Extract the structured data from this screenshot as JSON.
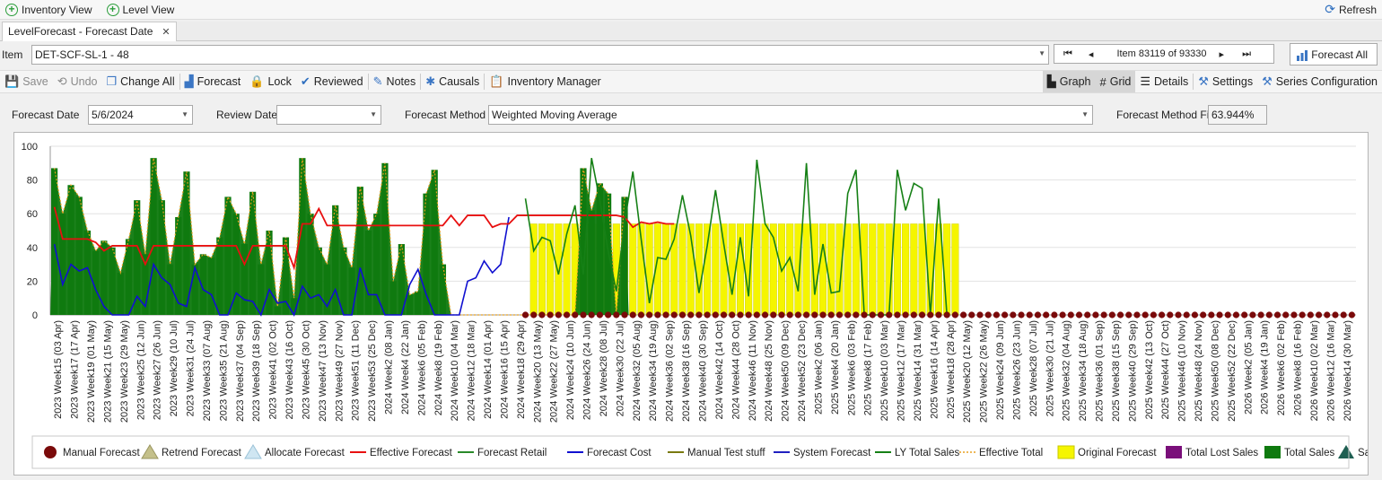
{
  "topbar": {
    "inventory_view": "Inventory View",
    "level_view": "Level View",
    "refresh": "Refresh"
  },
  "tab": {
    "label": "LevelForecast - Forecast Date",
    "close": "✕"
  },
  "item": {
    "label": "Item",
    "value": "DET-SCF-SL-1 - 48",
    "pager_text": "Item 83119 of 93330",
    "forecast_all": "Forecast All"
  },
  "toolbar": {
    "save": "Save",
    "undo": "Undo",
    "change_all": "Change All",
    "forecast": "Forecast",
    "lock": "Lock",
    "reviewed": "Reviewed",
    "notes": "Notes",
    "causals": "Causals",
    "inventory_manager": "Inventory Manager",
    "graph": "Graph",
    "grid": "Grid",
    "details": "Details",
    "settings": "Settings",
    "series_configuration": "Series Configuration"
  },
  "params": {
    "forecast_date_label": "Forecast Date",
    "forecast_date_value": "5/6/2024",
    "review_date_label": "Review Date",
    "review_date_value": "",
    "forecast_method_label": "Forecast Method",
    "forecast_method_value": "Weighted Moving Average",
    "fit_label": "Forecast Method Fit",
    "fit_value": "63.944%"
  },
  "colors": {
    "total_sales": "#0f7a0f",
    "original_forecast": "#f5f500",
    "effective_forecast": "#e81010",
    "forecast_cost": "#1010d0",
    "ly_total_sales": "#168016",
    "manual_forecast": "#7a0a0a",
    "effective_total": "#e8a020"
  },
  "chart_data": {
    "type": "combo",
    "ylim": [
      0,
      100
    ],
    "yticks": [
      0,
      20,
      40,
      60,
      80,
      100
    ],
    "grid": true,
    "legend_position": "bottom",
    "categories": [
      "2023 Week15 (03 Apr)",
      "2023 Week17 (17 Apr)",
      "2023 Week19 (01 May)",
      "2023 Week21 (15 May)",
      "2023 Week23 (29 May)",
      "2023 Week25 (12 Jun)",
      "2023 Week27 (26 Jun)",
      "2023 Week29 (10 Jul)",
      "2023 Week31 (24 Jul)",
      "2023 Week33 (07 Aug)",
      "2023 Week35 (21 Aug)",
      "2023 Week37 (04 Sep)",
      "2023 Week39 (18 Sep)",
      "2023 Week41 (02 Oct)",
      "2023 Week43 (16 Oct)",
      "2023 Week45 (30 Oct)",
      "2023 Week47 (13 Nov)",
      "2023 Week49 (27 Nov)",
      "2023 Week51 (11 Dec)",
      "2023 Week53 (25 Dec)",
      "2024 Week2 (08 Jan)",
      "2024 Week4 (22 Jan)",
      "2024 Week6 (05 Feb)",
      "2024 Week8 (19 Feb)",
      "2024 Week10 (04 Mar)",
      "2024 Week12 (18 Mar)",
      "2024 Week14 (01 Apr)",
      "2024 Week16 (15 Apr)",
      "2024 Week18 (29 Apr)",
      "2024 Week20 (13 May)",
      "2024 Week22 (27 May)",
      "2024 Week24 (10 Jun)",
      "2024 Week26 (24 Jun)",
      "2024 Week28 (08 Jul)",
      "2024 Week30 (22 Jul)",
      "2024 Week32 (05 Aug)",
      "2024 Week34 (19 Aug)",
      "2024 Week36 (02 Sep)",
      "2024 Week38 (16 Sep)",
      "2024 Week40 (30 Sep)",
      "2024 Week42 (14 Oct)",
      "2024 Week44 (28 Oct)",
      "2024 Week46 (11 Nov)",
      "2024 Week48 (25 Nov)",
      "2024 Week50 (09 Dec)",
      "2024 Week52 (23 Dec)",
      "2025 Week2 (06 Jan)",
      "2025 Week4 (20 Jan)",
      "2025 Week6 (03 Feb)",
      "2025 Week8 (17 Feb)",
      "2025 Week10 (03 Mar)",
      "2025 Week12 (17 Mar)",
      "2025 Week14 (31 Mar)",
      "2025 Week16 (14 Apr)",
      "2025 Week18 (28 Apr)",
      "2025 Week20 (12 May)",
      "2025 Week22 (26 May)",
      "2025 Week24 (09 Jun)",
      "2025 Week26 (23 Jun)",
      "2025 Week28 (07 Jul)",
      "2025 Week30 (21 Jul)",
      "2025 Week32 (04 Aug)",
      "2025 Week34 (18 Aug)",
      "2025 Week36 (01 Sep)",
      "2025 Week38 (15 Sep)",
      "2025 Week40 (29 Sep)",
      "2025 Week42 (13 Oct)",
      "2025 Week44 (27 Oct)",
      "2025 Week46 (10 Nov)",
      "2025 Week48 (24 Nov)",
      "2025 Week50 (08 Dec)",
      "2025 Week52 (22 Dec)",
      "2026 Week2 (05 Jan)",
      "2026 Week4 (19 Jan)",
      "2026 Week6 (02 Feb)",
      "2026 Week8 (16 Feb)",
      "2026 Week10 (02 Mar)",
      "2026 Week12 (16 Mar)",
      "2026 Week14 (30 Mar)"
    ],
    "total_sales": [
      87,
      60,
      77,
      70,
      50,
      38,
      44,
      40,
      25,
      45,
      68,
      36,
      93,
      68,
      30,
      58,
      85,
      30,
      36,
      34,
      46,
      70,
      60,
      42,
      73,
      30,
      50,
      5,
      46,
      10,
      93,
      60,
      40,
      30,
      65,
      40,
      28,
      76,
      50,
      60,
      90,
      20,
      42,
      12,
      14,
      72,
      86,
      30,
      0,
      0,
      0,
      0,
      0,
      0,
      0,
      0,
      0,
      0,
      0,
      0,
      0,
      0,
      0,
      0,
      87,
      62,
      78,
      72,
      0,
      70
    ],
    "total_sales_note": "Weekly actual sales Apr 2023 - May 2024 (2 bars per category label)",
    "original_forecast": [
      54
    ],
    "original_forecast_note": "Flat forecast ~54 from 2024 Week20 to 2025 Week18",
    "effective_forecast": [
      64,
      45,
      45,
      45,
      45,
      43,
      38,
      41,
      41,
      41,
      41,
      30,
      41,
      41,
      41,
      41,
      41,
      41,
      41,
      41,
      41,
      41,
      41,
      30,
      41,
      41,
      41,
      41,
      41,
      28,
      54,
      54,
      63,
      53,
      53,
      53,
      53,
      53,
      53,
      53,
      53,
      53,
      53,
      53,
      53,
      53,
      53,
      53,
      59,
      53,
      59,
      59,
      59,
      52,
      54,
      54,
      59,
      59,
      59,
      59,
      59,
      59,
      59,
      59,
      59,
      59,
      59,
      59,
      59,
      58,
      52,
      55,
      54,
      55,
      54,
      54
    ],
    "forecast_cost": [
      42,
      18,
      30,
      26,
      28,
      15,
      5,
      0,
      0,
      0,
      11,
      5,
      30,
      22,
      18,
      7,
      5,
      28,
      15,
      12,
      0,
      0,
      13,
      9,
      8,
      0,
      15,
      7,
      8,
      0,
      17,
      10,
      12,
      5,
      15,
      0,
      0,
      28,
      12,
      12,
      0,
      0,
      0,
      18,
      27,
      12,
      0,
      0,
      0,
      0,
      20,
      22,
      32,
      25,
      30,
      58
    ],
    "ly_total_sales": [
      69,
      38,
      46,
      44,
      24,
      48,
      65,
      24,
      93,
      68,
      38,
      14,
      55,
      85,
      45,
      7,
      34,
      33,
      45,
      71,
      47,
      13,
      41,
      74,
      42,
      12,
      46,
      11,
      92,
      54,
      46,
      26,
      34,
      14,
      90,
      12,
      42,
      13,
      14,
      72,
      86,
      0,
      0,
      0,
      0,
      86,
      62,
      78,
      75,
      0,
      69,
      0
    ],
    "ly_total_sales_note": "Plotted from 2024 Week19 through 2025 Week20",
    "manual_forecast": [
      0
    ],
    "manual_forecast_note": "Markers at 0 from 2024 Week19 to 2026 Week14",
    "legend": [
      "Manual Forecast",
      "Retrend Forecast",
      "Allocate Forecast",
      "Effective Forecast",
      "Forecast Retail",
      "Forecast Cost",
      "Manual Test stuff",
      "System Forecast",
      "LY Total Sales",
      "Effective Total",
      "Original Forecast",
      "Total Lost Sales",
      "Total Sales",
      "Sales"
    ]
  }
}
